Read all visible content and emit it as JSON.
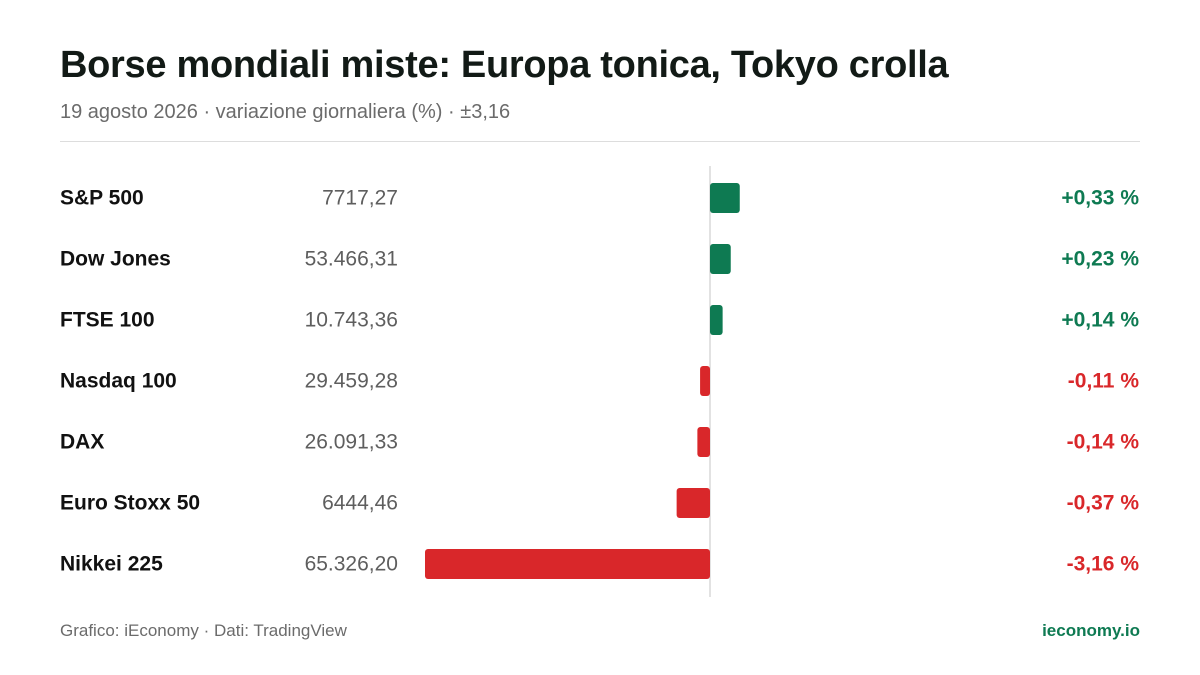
{
  "header": {
    "title": "Borse mondiali miste: Europa tonica, Tokyo crolla",
    "subtitle": "19 agosto 2026 · variazione giornaliera (%) · ±3,16"
  },
  "colors": {
    "positive": "#0e7a52",
    "negative": "#d9272a",
    "axis": "#d9d9d9"
  },
  "chart_data": {
    "type": "bar",
    "orientation": "horizontal",
    "xlim": [
      -3.16,
      3.16
    ],
    "categories": [
      "S&P 500",
      "Dow Jones",
      "FTSE 100",
      "Nasdaq 100",
      "DAX",
      "Euro Stoxx 50",
      "Nikkei 225"
    ],
    "index_levels": [
      "7717,27",
      "53.466,31",
      "10.743,36",
      "29.459,28",
      "26.091,33",
      "6444,46",
      "65.326,20"
    ],
    "values": [
      0.33,
      0.23,
      0.14,
      -0.11,
      -0.14,
      -0.37,
      -3.16
    ],
    "value_labels": [
      "+0,33 %",
      "+0,23 %",
      "+0,14 %",
      "-0,11 %",
      "-0,14 %",
      "-0,37 %",
      "-3,16 %"
    ]
  },
  "footer": {
    "source": "Grafico: iEconomy · Dati: TradingView",
    "brand": "ieconomy.io"
  }
}
